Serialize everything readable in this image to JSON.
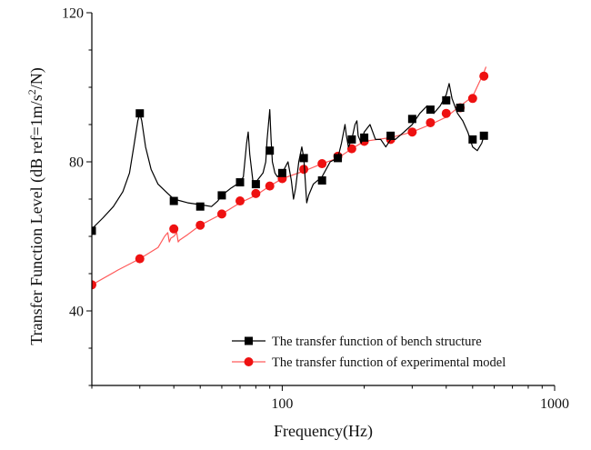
{
  "chart_data": {
    "type": "line",
    "xscale": "log",
    "xlim": [
      20,
      1000
    ],
    "ylim": [
      20,
      120
    ],
    "xticks": [
      {
        "value": 100,
        "label": "100"
      },
      {
        "value": 1000,
        "label": "1000"
      }
    ],
    "yticks": [
      {
        "value": 40,
        "label": "40"
      },
      {
        "value": 80,
        "label": "80"
      },
      {
        "value": 120,
        "label": "120"
      }
    ],
    "xlabel": "Frequency(Hz)",
    "ylabel_prefix": "Transfer Function Level (dB ref=1m/s",
    "ylabel_sup": "2",
    "ylabel_suffix": "/N)",
    "grid": false,
    "legend_position": "bottom-right",
    "colors": {
      "bench": "#000000",
      "model_line": "#ff5a5a",
      "model_marker": "#ee1111"
    },
    "series": [
      {
        "key": "bench",
        "name": "The transfer function of bench structure",
        "marker": "square",
        "line": [
          [
            20,
            62
          ],
          [
            22,
            65
          ],
          [
            24,
            68
          ],
          [
            26,
            72
          ],
          [
            27.5,
            77
          ],
          [
            28.5,
            84
          ],
          [
            29.5,
            91
          ],
          [
            30,
            93
          ],
          [
            30.5,
            91
          ],
          [
            31.5,
            84
          ],
          [
            33,
            78
          ],
          [
            35,
            74
          ],
          [
            38,
            71.5
          ],
          [
            40,
            70
          ],
          [
            45,
            69
          ],
          [
            50,
            68.5
          ],
          [
            55,
            68
          ],
          [
            58,
            69.5
          ],
          [
            60,
            71
          ],
          [
            65,
            73
          ],
          [
            70,
            74.5
          ],
          [
            72,
            76
          ],
          [
            74,
            85
          ],
          [
            75,
            88
          ],
          [
            76,
            82
          ],
          [
            78,
            75
          ],
          [
            80,
            74.5
          ],
          [
            85,
            77
          ],
          [
            87,
            80
          ],
          [
            88,
            86
          ],
          [
            89,
            90
          ],
          [
            90,
            94
          ],
          [
            91,
            86
          ],
          [
            92,
            80
          ],
          [
            94,
            77
          ],
          [
            96,
            76
          ],
          [
            100,
            77
          ],
          [
            105,
            80
          ],
          [
            108,
            75
          ],
          [
            110,
            70
          ],
          [
            112,
            73
          ],
          [
            115,
            80
          ],
          [
            118,
            84
          ],
          [
            120,
            81
          ],
          [
            123,
            69
          ],
          [
            125,
            71
          ],
          [
            130,
            74
          ],
          [
            140,
            76
          ],
          [
            150,
            80
          ],
          [
            160,
            81
          ],
          [
            165,
            85
          ],
          [
            170,
            90
          ],
          [
            172,
            87
          ],
          [
            175,
            84
          ],
          [
            180,
            86
          ],
          [
            185,
            90
          ],
          [
            188,
            91
          ],
          [
            190,
            87
          ],
          [
            195,
            85
          ],
          [
            200,
            88
          ],
          [
            210,
            90
          ],
          [
            220,
            86
          ],
          [
            230,
            86
          ],
          [
            240,
            84
          ],
          [
            250,
            86
          ],
          [
            260,
            86
          ],
          [
            280,
            88
          ],
          [
            300,
            90
          ],
          [
            320,
            93
          ],
          [
            340,
            95
          ],
          [
            360,
            93
          ],
          [
            380,
            95
          ],
          [
            400,
            98
          ],
          [
            410,
            101
          ],
          [
            420,
            97
          ],
          [
            440,
            93
          ],
          [
            460,
            91
          ],
          [
            480,
            88
          ],
          [
            500,
            84
          ],
          [
            520,
            83
          ],
          [
            540,
            85
          ],
          [
            550,
            87
          ]
        ],
        "markers": [
          [
            20,
            61.5
          ],
          [
            30,
            93
          ],
          [
            40,
            69.5
          ],
          [
            50,
            68
          ],
          [
            60,
            71
          ],
          [
            70,
            74.5
          ],
          [
            80,
            74
          ],
          [
            90,
            83
          ],
          [
            100,
            77
          ],
          [
            120,
            81
          ],
          [
            140,
            75
          ],
          [
            160,
            81
          ],
          [
            180,
            86
          ],
          [
            200,
            86.5
          ],
          [
            250,
            87
          ],
          [
            300,
            91.5
          ],
          [
            350,
            94
          ],
          [
            400,
            96.5
          ],
          [
            450,
            94.5
          ],
          [
            500,
            86
          ],
          [
            550,
            87
          ]
        ]
      },
      {
        "key": "model",
        "name": "The transfer function of experimental model",
        "marker": "circle",
        "line": [
          [
            20,
            47
          ],
          [
            25,
            51
          ],
          [
            30,
            54
          ],
          [
            35,
            57
          ],
          [
            37,
            60
          ],
          [
            38,
            61
          ],
          [
            38.5,
            58.5
          ],
          [
            39,
            59.5
          ],
          [
            40,
            60
          ],
          [
            41,
            61
          ],
          [
            41.5,
            58.5
          ],
          [
            42,
            59
          ],
          [
            45,
            60.5
          ],
          [
            50,
            63
          ],
          [
            60,
            66
          ],
          [
            70,
            69
          ],
          [
            80,
            71
          ],
          [
            90,
            73.5
          ],
          [
            100,
            75.5
          ],
          [
            120,
            77.5
          ],
          [
            140,
            79.5
          ],
          [
            160,
            81
          ],
          [
            180,
            83.5
          ],
          [
            200,
            85.5
          ],
          [
            250,
            86.5
          ],
          [
            300,
            88
          ],
          [
            350,
            90
          ],
          [
            400,
            92
          ],
          [
            450,
            95
          ],
          [
            500,
            97.5
          ],
          [
            550,
            104
          ],
          [
            560,
            105.5
          ]
        ],
        "markers": [
          [
            20,
            47
          ],
          [
            30,
            54
          ],
          [
            40,
            62
          ],
          [
            50,
            63
          ],
          [
            60,
            66
          ],
          [
            70,
            69.5
          ],
          [
            80,
            71.5
          ],
          [
            90,
            73.5
          ],
          [
            100,
            75.5
          ],
          [
            120,
            78
          ],
          [
            140,
            79.5
          ],
          [
            160,
            81.5
          ],
          [
            180,
            83.5
          ],
          [
            200,
            85.5
          ],
          [
            250,
            86
          ],
          [
            300,
            88
          ],
          [
            350,
            90.5
          ],
          [
            400,
            93
          ],
          [
            450,
            94.5
          ],
          [
            500,
            97
          ],
          [
            550,
            103
          ]
        ]
      }
    ]
  }
}
